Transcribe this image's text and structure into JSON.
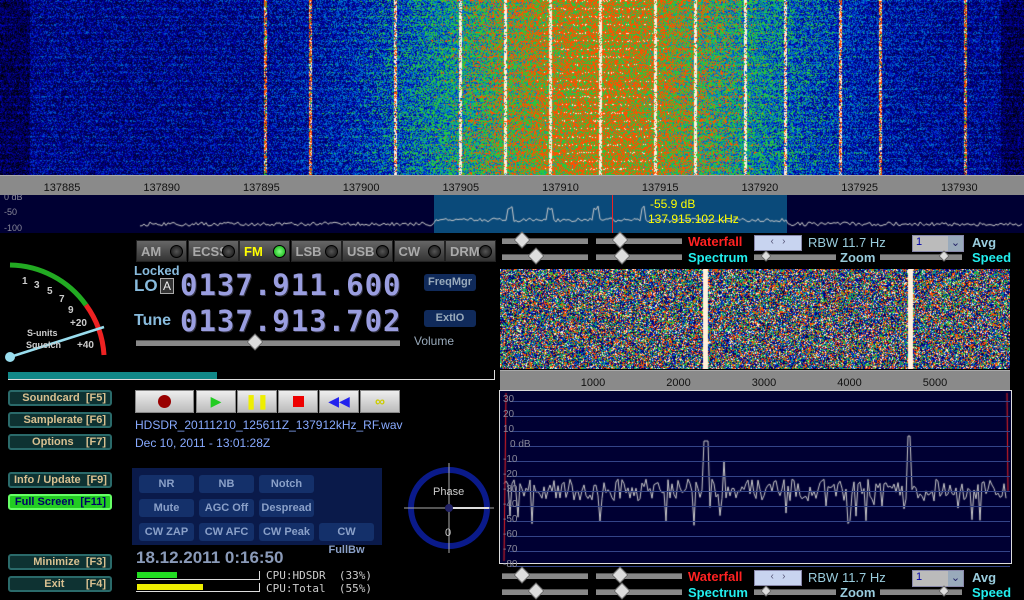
{
  "rf_scale": {
    "ticks": [
      "137885",
      "137890",
      "137895",
      "137900",
      "137905",
      "137910",
      "137915",
      "137920",
      "137925",
      "137930"
    ]
  },
  "rf_spectrum": {
    "db_labels": [
      "0 dB",
      "-50",
      "-100"
    ],
    "cursor_db": "-55.9 dB",
    "cursor_freq": "137.915.102 kHz"
  },
  "modes": [
    {
      "label": "AM",
      "active": false
    },
    {
      "label": "ECSS",
      "active": false
    },
    {
      "label": "FM",
      "active": true
    },
    {
      "label": "LSB",
      "active": false
    },
    {
      "label": "USB",
      "active": false
    },
    {
      "label": "CW",
      "active": false
    },
    {
      "label": "DRM",
      "active": false
    }
  ],
  "smeter": {
    "labels": [
      "1",
      "3",
      "5",
      "7",
      "9",
      "+20",
      "+40"
    ],
    "title1": "S-units",
    "title2": "Squelch"
  },
  "lo": {
    "locked": "Locked",
    "label": "LO",
    "badge": "A",
    "value": "0137.911.600"
  },
  "tune": {
    "label": "Tune",
    "value": "0137.913.702"
  },
  "freqmgr": "FreqMgr",
  "extio": "ExtIO",
  "volume_label": "Volume",
  "volume_level": 0.45,
  "left_buttons": [
    {
      "label": "Soundcard  [F5]"
    },
    {
      "label": "Samplerate [F6]"
    },
    {
      "label": "Options    [F7]"
    },
    {
      "label": "Info / Update  [F9]"
    },
    {
      "label": "Full Screen  [F11]",
      "active": true
    },
    {
      "label": "Minimize  [F3]"
    },
    {
      "label": "Exit       [F4]"
    }
  ],
  "recording": {
    "filename": "HDSDR_20111210_125611Z_137912kHz_RF.wav",
    "date": "Dec 10, 2011 - 13:01:28Z"
  },
  "dsp_buttons": [
    "NR",
    "NB",
    "Notch",
    "Mute",
    "AGC Off",
    "Despread",
    "CW ZAP",
    "CW AFC",
    "CW Peak",
    "CW FullBw"
  ],
  "phase": {
    "label": "Phase",
    "value": "0"
  },
  "clock": "18.12.2011 0:16:50",
  "cpu": {
    "hdsdr": "CPU:HDSDR  (33%)",
    "total": "CPU:Total  (55%)",
    "hdsdr_pct": 33,
    "total_pct": 55
  },
  "controls": {
    "waterfall": "Waterfall",
    "spectrum": "Spectrum",
    "rbw": "RBW 11.7 Hz",
    "avg_value": "1",
    "avg": "Avg",
    "zoom": "Zoom",
    "speed": "Speed"
  },
  "af_scale": {
    "ticks": [
      "1000",
      "2000",
      "3000",
      "4000",
      "5000"
    ]
  },
  "af_spectrum": {
    "db_labels": [
      "30",
      "20",
      "10",
      "0 dB",
      "-10",
      "-20",
      "-30",
      "-40",
      "-50",
      "-60",
      "-70",
      "-80"
    ]
  },
  "colors": {
    "accent_red": "#ff2222",
    "accent_cyan": "#22eeee",
    "spectrum_bg": "#000033"
  }
}
